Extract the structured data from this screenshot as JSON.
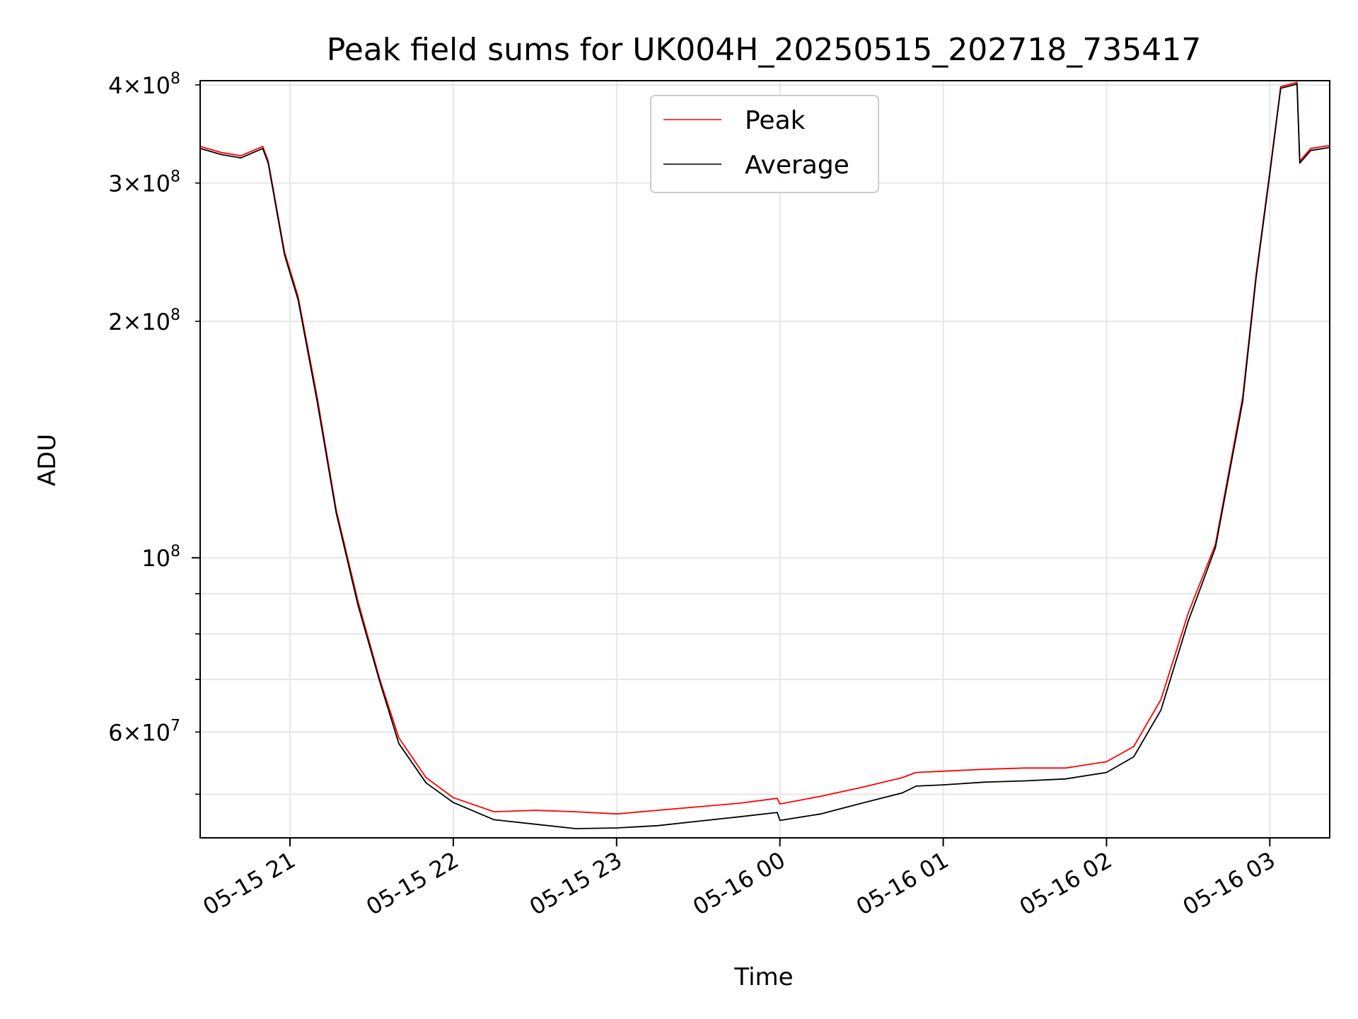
{
  "chart_data": {
    "type": "line",
    "title": "Peak field sums for UK004H_20250515_202718_735417",
    "xlabel": "Time",
    "ylabel": "ADU",
    "x_scale": "time",
    "y_scale": "log",
    "xlim": [
      "2025-05-15 20:27",
      "2025-05-16 03:22"
    ],
    "ylim": [
      44000000,
      405000000
    ],
    "grid": true,
    "legend_position": "upper-center",
    "x_ticks": [
      {
        "value": "2025-05-15 21:00",
        "label": "05-15 21"
      },
      {
        "value": "2025-05-15 22:00",
        "label": "05-15 22"
      },
      {
        "value": "2025-05-15 23:00",
        "label": "05-15 23"
      },
      {
        "value": "2025-05-16 00:00",
        "label": "05-16 00"
      },
      {
        "value": "2025-05-16 01:00",
        "label": "05-16 01"
      },
      {
        "value": "2025-05-16 02:00",
        "label": "05-16 02"
      },
      {
        "value": "2025-05-16 03:00",
        "label": "05-16 03"
      }
    ],
    "y_ticks_major": [
      {
        "value": 100000000,
        "base": "10",
        "exp": "8"
      }
    ],
    "y_ticks_minor": [
      {
        "value": 50000000,
        "mant": "",
        "exp": ""
      },
      {
        "value": 60000000,
        "mant": "6",
        "exp": "7"
      },
      {
        "value": 70000000,
        "mant": "",
        "exp": ""
      },
      {
        "value": 80000000,
        "mant": "",
        "exp": ""
      },
      {
        "value": 90000000,
        "mant": "",
        "exp": ""
      },
      {
        "value": 200000000,
        "mant": "2",
        "exp": "8"
      },
      {
        "value": 300000000,
        "mant": "3",
        "exp": "8"
      },
      {
        "value": 400000000,
        "mant": "4",
        "exp": "8"
      }
    ],
    "series": [
      {
        "name": "Peak",
        "color": "#ff0000",
        "x": [
          "2025-05-15 20:27",
          "2025-05-15 20:35",
          "2025-05-15 20:42",
          "2025-05-15 20:50",
          "2025-05-15 20:52",
          "2025-05-15 20:58",
          "2025-05-15 21:03",
          "2025-05-15 21:10",
          "2025-05-15 21:17",
          "2025-05-15 21:25",
          "2025-05-15 21:33",
          "2025-05-15 21:40",
          "2025-05-15 21:50",
          "2025-05-15 22:00",
          "2025-05-15 22:15",
          "2025-05-15 22:30",
          "2025-05-15 22:45",
          "2025-05-15 23:00",
          "2025-05-15 23:15",
          "2025-05-15 23:30",
          "2025-05-15 23:45",
          "2025-05-15 23:59",
          "2025-05-16 00:00",
          "2025-05-16 00:15",
          "2025-05-16 00:30",
          "2025-05-16 00:45",
          "2025-05-16 00:50",
          "2025-05-16 01:00",
          "2025-05-16 01:15",
          "2025-05-16 01:30",
          "2025-05-16 01:45",
          "2025-05-16 02:00",
          "2025-05-16 02:10",
          "2025-05-16 02:20",
          "2025-05-16 02:30",
          "2025-05-16 02:40",
          "2025-05-16 02:50",
          "2025-05-16 02:55",
          "2025-05-16 03:00",
          "2025-05-16 03:04",
          "2025-05-16 03:10",
          "2025-05-16 03:11",
          "2025-05-16 03:15",
          "2025-05-16 03:22"
        ],
        "y": [
          334000000,
          328000000,
          325000000,
          334000000,
          320000000,
          245000000,
          215000000,
          160000000,
          115000000,
          88000000,
          70000000,
          59000000,
          52500000,
          49500000,
          47500000,
          47700000,
          47500000,
          47200000,
          47700000,
          48200000,
          48700000,
          49400000,
          48600000,
          49700000,
          51000000,
          52500000,
          53300000,
          53500000,
          53800000,
          54000000,
          54000000,
          55000000,
          57500000,
          66000000,
          85000000,
          104000000,
          160000000,
          230000000,
          310000000,
          398000000,
          403000000,
          320000000,
          332000000,
          335000000
        ]
      },
      {
        "name": "Average",
        "color": "#000000",
        "x": [
          "2025-05-15 20:27",
          "2025-05-15 20:35",
          "2025-05-15 20:42",
          "2025-05-15 20:50",
          "2025-05-15 20:52",
          "2025-05-15 20:58",
          "2025-05-15 21:03",
          "2025-05-15 21:10",
          "2025-05-15 21:17",
          "2025-05-15 21:25",
          "2025-05-15 21:33",
          "2025-05-15 21:40",
          "2025-05-15 21:50",
          "2025-05-15 22:00",
          "2025-05-15 22:15",
          "2025-05-15 22:30",
          "2025-05-15 22:45",
          "2025-05-15 23:00",
          "2025-05-15 23:15",
          "2025-05-15 23:30",
          "2025-05-15 23:45",
          "2025-05-15 23:59",
          "2025-05-16 00:00",
          "2025-05-16 00:15",
          "2025-05-16 00:30",
          "2025-05-16 00:45",
          "2025-05-16 00:50",
          "2025-05-16 01:00",
          "2025-05-16 01:15",
          "2025-05-16 01:30",
          "2025-05-16 01:45",
          "2025-05-16 02:00",
          "2025-05-16 02:10",
          "2025-05-16 02:20",
          "2025-05-16 02:30",
          "2025-05-16 02:40",
          "2025-05-16 02:50",
          "2025-05-16 02:55",
          "2025-05-16 03:00",
          "2025-05-16 03:04",
          "2025-05-16 03:10",
          "2025-05-16 03:11",
          "2025-05-16 03:15",
          "2025-05-16 03:22"
        ],
        "y": [
          332000000,
          326000000,
          323000000,
          332000000,
          318000000,
          243000000,
          213000000,
          158000000,
          114000000,
          87000000,
          69500000,
          58000000,
          51700000,
          48800000,
          46400000,
          45800000,
          45200000,
          45300000,
          45600000,
          46200000,
          46800000,
          47400000,
          46300000,
          47200000,
          48700000,
          50200000,
          51200000,
          51400000,
          51800000,
          52000000,
          52300000,
          53300000,
          55800000,
          64000000,
          83000000,
          103000000,
          158000000,
          228000000,
          308000000,
          396000000,
          401000000,
          318000000,
          330000000,
          333000000
        ]
      }
    ]
  }
}
